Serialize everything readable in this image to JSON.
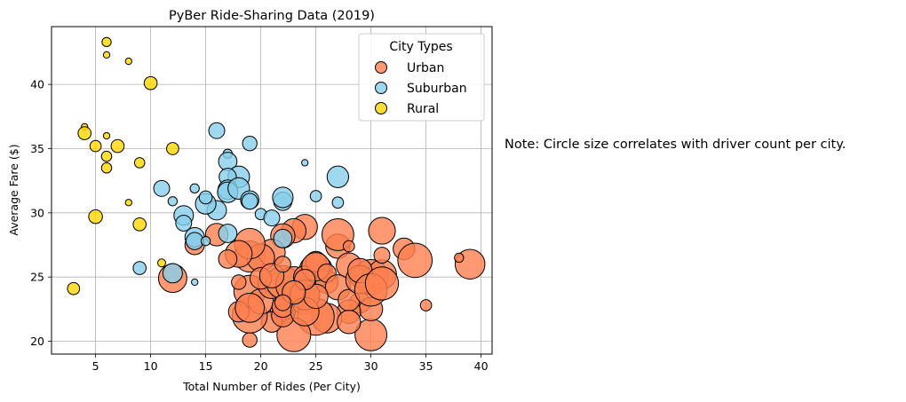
{
  "chart_data": {
    "type": "scatter",
    "title": "PyBer Ride-Sharing Data (2019)",
    "xlabel": "Total Number of Rides (Per City)",
    "ylabel": "Average Fare ($)",
    "xlim": [
      1,
      41
    ],
    "ylim": [
      19,
      44.5
    ],
    "xticks": [
      5,
      10,
      15,
      20,
      25,
      30,
      35,
      40
    ],
    "yticks": [
      20,
      25,
      30,
      35,
      40
    ],
    "grid": true,
    "legend": {
      "title": "City Types",
      "placement": "top-right"
    },
    "note": "Note: Circle size correlates with driver count per city.",
    "series": [
      {
        "name": "Urban",
        "color": "#FF7F50",
        "points": [
          [
            19,
            26.6,
            46
          ],
          [
            22,
            22.3,
            30
          ],
          [
            24,
            23.2,
            38
          ],
          [
            25,
            25.5,
            52
          ],
          [
            27,
            27.4,
            28
          ],
          [
            27,
            28.3,
            48
          ],
          [
            28,
            25.9,
            30
          ],
          [
            30,
            25.0,
            58
          ],
          [
            30,
            20.5,
            48
          ],
          [
            31,
            25.2,
            40
          ],
          [
            31,
            28.6,
            34
          ],
          [
            33,
            27.2,
            22
          ],
          [
            34,
            26.3,
            56
          ],
          [
            39,
            26.0,
            42
          ],
          [
            38,
            26.5,
            4
          ],
          [
            35,
            22.8,
            6
          ],
          [
            28,
            27.4,
            6
          ],
          [
            31,
            26.7,
            12
          ],
          [
            29,
            25.0,
            20
          ],
          [
            29,
            23.0,
            20
          ],
          [
            30,
            22.5,
            26
          ],
          [
            28,
            22.3,
            26
          ],
          [
            26,
            21.8,
            42
          ],
          [
            25,
            21.9,
            64
          ],
          [
            23,
            20.5,
            54
          ],
          [
            21,
            21.5,
            20
          ],
          [
            19,
            20.1,
            10
          ],
          [
            19,
            22.0,
            58
          ],
          [
            19,
            23.9,
            48
          ],
          [
            20,
            23.1,
            30
          ],
          [
            21,
            24.4,
            36
          ],
          [
            22,
            24.6,
            52
          ],
          [
            23,
            24.4,
            62
          ],
          [
            24,
            25.0,
            24
          ],
          [
            24,
            23.6,
            42
          ],
          [
            26,
            24.6,
            24
          ],
          [
            25,
            26.2,
            20
          ],
          [
            24,
            28.9,
            30
          ],
          [
            23,
            28.6,
            28
          ],
          [
            22,
            28.2,
            28
          ],
          [
            21,
            26.9,
            34
          ],
          [
            20,
            26.5,
            36
          ],
          [
            19,
            27.6,
            44
          ],
          [
            18,
            26.8,
            34
          ],
          [
            17,
            26.4,
            16
          ],
          [
            16,
            28.3,
            24
          ],
          [
            14,
            27.5,
            18
          ],
          [
            12,
            24.9,
            38
          ],
          [
            18,
            22.3,
            20
          ],
          [
            19,
            22.6,
            40
          ],
          [
            18,
            24.6,
            10
          ],
          [
            22,
            22.0,
            24
          ],
          [
            22,
            22.7,
            22
          ],
          [
            24,
            22.3,
            38
          ],
          [
            25,
            25.8,
            38
          ],
          [
            26,
            25.3,
            16
          ],
          [
            27,
            24.2,
            30
          ],
          [
            28,
            23.2,
            22
          ],
          [
            29,
            24.8,
            38
          ],
          [
            29,
            25.5,
            28
          ],
          [
            30,
            24.0,
            50
          ],
          [
            31,
            24.5,
            52
          ],
          [
            28,
            21.5,
            26
          ],
          [
            25,
            23.5,
            28
          ],
          [
            24,
            24.8,
            20
          ],
          [
            20,
            24.9,
            22
          ],
          [
            21,
            25.1,
            28
          ],
          [
            23,
            23.8,
            26
          ],
          [
            22,
            26.0,
            12
          ],
          [
            22,
            23.0,
            12
          ]
        ]
      },
      {
        "name": "Suburban",
        "color": "#87CEEB",
        "points": [
          [
            16,
            36.4,
            12
          ],
          [
            19,
            35.4,
            10
          ],
          [
            17,
            34.6,
            4
          ],
          [
            17,
            34.0,
            16
          ],
          [
            18,
            32.8,
            22
          ],
          [
            17,
            32.8,
            14
          ],
          [
            17,
            31.8,
            18
          ],
          [
            17,
            31.6,
            20
          ],
          [
            18,
            31.9,
            22
          ],
          [
            19,
            31.0,
            16
          ],
          [
            19,
            30.9,
            12
          ],
          [
            20,
            29.9,
            6
          ],
          [
            21,
            29.6,
            12
          ],
          [
            22,
            30.9,
            16
          ],
          [
            22,
            31.2,
            20
          ],
          [
            25,
            31.3,
            6
          ],
          [
            27,
            32.8,
            22
          ],
          [
            27,
            30.8,
            6
          ],
          [
            22,
            28.0,
            16
          ],
          [
            17,
            28.4,
            16
          ],
          [
            16,
            30.2,
            18
          ],
          [
            15,
            30.7,
            20
          ],
          [
            15,
            31.2,
            8
          ],
          [
            14,
            31.9,
            4
          ],
          [
            13,
            29.8,
            18
          ],
          [
            13,
            29.2,
            12
          ],
          [
            14,
            28.1,
            18
          ],
          [
            14,
            27.8,
            14
          ],
          [
            12,
            30.9,
            4
          ],
          [
            11,
            31.9,
            12
          ],
          [
            15,
            27.8,
            4
          ],
          [
            12,
            25.3,
            18
          ],
          [
            14,
            24.6,
            2
          ],
          [
            9,
            25.7,
            8
          ],
          [
            24,
            33.9,
            2
          ]
        ]
      },
      {
        "name": "Rural",
        "color": "#FFD700",
        "points": [
          [
            6,
            43.3,
            4
          ],
          [
            6,
            42.3,
            2
          ],
          [
            8,
            41.8,
            2
          ],
          [
            10,
            40.1,
            8
          ],
          [
            4,
            36.7,
            2
          ],
          [
            4,
            36.2,
            8
          ],
          [
            6,
            36.0,
            2
          ],
          [
            5,
            35.2,
            6
          ],
          [
            7,
            35.2,
            8
          ],
          [
            12,
            35.0,
            7
          ],
          [
            6,
            34.4,
            5
          ],
          [
            6,
            33.5,
            5
          ],
          [
            9,
            33.9,
            5
          ],
          [
            8,
            30.8,
            2
          ],
          [
            5,
            29.7,
            9
          ],
          [
            9,
            29.1,
            8
          ],
          [
            11,
            26.1,
            3
          ],
          [
            3,
            24.1,
            7
          ]
        ]
      }
    ]
  }
}
